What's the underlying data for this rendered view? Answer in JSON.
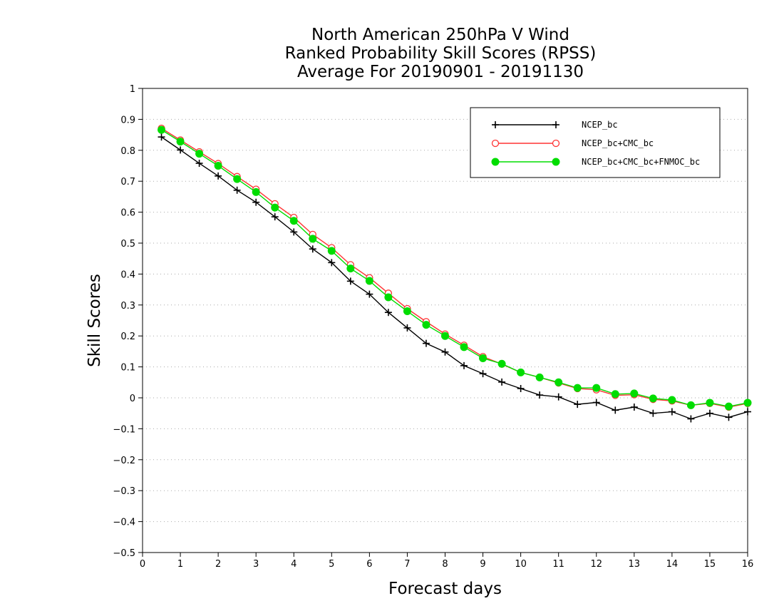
{
  "chart_data": {
    "type": "line",
    "title": [
      "North American 250hPa V Wind",
      "Ranked Probability Skill Scores (RPSS)",
      "Average For 20190901 - 20191130"
    ],
    "xlabel": "Forecast days",
    "ylabel": "Skill Scores",
    "xlim": [
      0,
      16
    ],
    "ylim": [
      -0.5,
      1
    ],
    "xticks": [
      "0",
      "1",
      "2",
      "3",
      "4",
      "5",
      "6",
      "7",
      "8",
      "9",
      "10",
      "11",
      "12",
      "13",
      "14",
      "15",
      "16"
    ],
    "yticks": [
      "1",
      "0.9",
      "0.8",
      "0.7",
      "0.6",
      "0.5",
      "0.4",
      "0.3",
      "0.2",
      "0.1",
      "0",
      "−0.1",
      "−0.2",
      "−0.3",
      "−0.4",
      "−0.5"
    ],
    "grid": "horizontal dotted",
    "legend_position": "top-right",
    "x": [
      0.5,
      1,
      1.5,
      2,
      2.5,
      3,
      3.5,
      4,
      4.5,
      5,
      5.5,
      6,
      6.5,
      7,
      7.5,
      8,
      8.5,
      9,
      9.5,
      10,
      10.5,
      11,
      11.5,
      12,
      12.5,
      13,
      13.5,
      14,
      14.5,
      15,
      15.5,
      16
    ],
    "series": [
      {
        "name": "NCEP_bc",
        "color": "#000000",
        "marker": "plus",
        "values": [
          0.843,
          0.801,
          0.758,
          0.717,
          0.671,
          0.632,
          0.585,
          0.536,
          0.481,
          0.437,
          0.377,
          0.335,
          0.276,
          0.226,
          0.176,
          0.148,
          0.104,
          0.078,
          0.051,
          0.03,
          0.009,
          0.003,
          -0.021,
          -0.015,
          -0.04,
          -0.03,
          -0.05,
          -0.045,
          -0.068,
          -0.05,
          -0.063,
          -0.045
        ]
      },
      {
        "name": "NCEP_bc+CMC_bc",
        "color": "#ff3333",
        "marker": "open-circle",
        "values": [
          0.871,
          0.833,
          0.795,
          0.757,
          0.715,
          0.674,
          0.627,
          0.583,
          0.528,
          0.485,
          0.43,
          0.388,
          0.338,
          0.288,
          0.246,
          0.206,
          0.17,
          0.133,
          0.109,
          0.082,
          0.066,
          0.048,
          0.03,
          0.026,
          0.008,
          0.01,
          -0.005,
          -0.01,
          -0.024,
          -0.018,
          -0.03,
          -0.018
        ]
      },
      {
        "name": "NCEP_bc+CMC_bc+FNMOC_bc",
        "color": "#00dd00",
        "marker": "filled-circle",
        "values": [
          0.866,
          0.828,
          0.789,
          0.75,
          0.707,
          0.665,
          0.615,
          0.572,
          0.514,
          0.475,
          0.418,
          0.378,
          0.325,
          0.28,
          0.236,
          0.2,
          0.164,
          0.128,
          0.11,
          0.082,
          0.066,
          0.05,
          0.032,
          0.032,
          0.012,
          0.014,
          -0.002,
          -0.007,
          -0.024,
          -0.016,
          -0.028,
          -0.016
        ]
      }
    ]
  }
}
